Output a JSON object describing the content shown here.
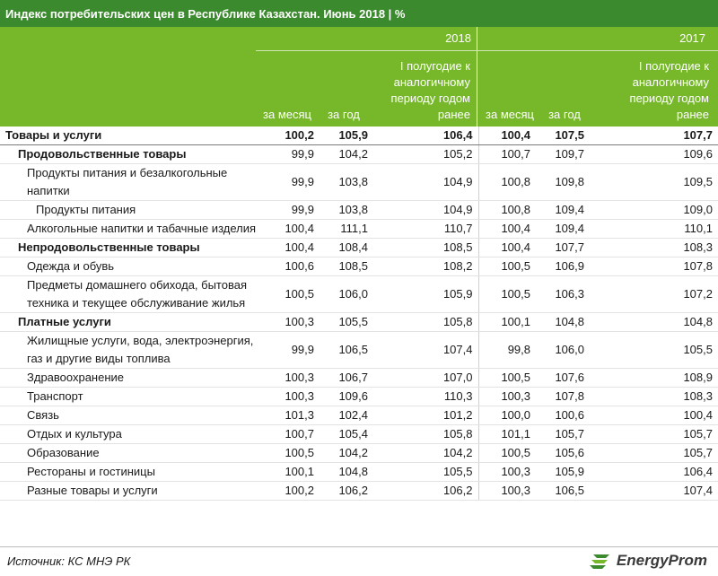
{
  "title": "Индекс потребительских цен в Республике Казахстан. Июнь 2018 | %",
  "header": {
    "year1": "2018",
    "year2": "2017",
    "col_month": "за месяц",
    "col_year": "за год",
    "col_half": "I полугодие к аналогичному периоду годом ранее"
  },
  "rows": [
    {
      "label": "Товары и услуги",
      "v": [
        "100,2",
        "105,9",
        "106,4",
        "100,4",
        "107,5",
        "107,7"
      ],
      "level": 0
    },
    {
      "label": "Продовольственные товары",
      "v": [
        "99,9",
        "104,2",
        "105,2",
        "100,7",
        "109,7",
        "109,6"
      ],
      "level": 1
    },
    {
      "label": "Продукты питания и безалкогольные напитки",
      "v": [
        "99,9",
        "103,8",
        "104,9",
        "100,8",
        "109,8",
        "109,5"
      ],
      "level": 2
    },
    {
      "label": "Продукты питания",
      "v": [
        "99,9",
        "103,8",
        "104,9",
        "100,8",
        "109,4",
        "109,0"
      ],
      "level": 3
    },
    {
      "label": "Алкогольные напитки и табачные изделия",
      "v": [
        "100,4",
        "111,1",
        "110,7",
        "100,4",
        "109,4",
        "110,1"
      ],
      "level": 2
    },
    {
      "label": "Непродовольственные товары",
      "v": [
        "100,4",
        "108,4",
        "108,5",
        "100,4",
        "107,7",
        "108,3"
      ],
      "level": 1
    },
    {
      "label": "Одежда и обувь",
      "v": [
        "100,6",
        "108,5",
        "108,2",
        "100,5",
        "106,9",
        "107,8"
      ],
      "level": 2
    },
    {
      "label": "Предметы домашнего обихода, бытовая техника и текущее обслуживание жилья",
      "v": [
        "100,5",
        "106,0",
        "105,9",
        "100,5",
        "106,3",
        "107,2"
      ],
      "level": 2
    },
    {
      "label": "Платные услуги",
      "v": [
        "100,3",
        "105,5",
        "105,8",
        "100,1",
        "104,8",
        "104,8"
      ],
      "level": 1
    },
    {
      "label": "Жилищные услуги, вода, электроэнергия, газ и другие виды топлива",
      "v": [
        "99,9",
        "106,5",
        "107,4",
        "99,8",
        "106,0",
        "105,5"
      ],
      "level": 2
    },
    {
      "label": "Здравоохранение",
      "v": [
        "100,3",
        "106,7",
        "107,0",
        "100,5",
        "107,6",
        "108,9"
      ],
      "level": 2
    },
    {
      "label": "Транспорт",
      "v": [
        "100,3",
        "109,6",
        "110,3",
        "100,3",
        "107,8",
        "108,3"
      ],
      "level": 2
    },
    {
      "label": "Связь",
      "v": [
        "101,3",
        "102,4",
        "101,2",
        "100,0",
        "100,6",
        "100,4"
      ],
      "level": 2
    },
    {
      "label": "Отдых и культура",
      "v": [
        "100,7",
        "105,4",
        "105,8",
        "101,1",
        "105,7",
        "105,7"
      ],
      "level": 2
    },
    {
      "label": "Образование",
      "v": [
        "100,5",
        "104,2",
        "104,2",
        "100,5",
        "105,6",
        "105,7"
      ],
      "level": 2
    },
    {
      "label": "Рестораны и гостиницы",
      "v": [
        "100,1",
        "104,8",
        "105,5",
        "100,3",
        "105,9",
        "106,4"
      ],
      "level": 2
    },
    {
      "label": "Разные товары и услуги",
      "v": [
        "100,2",
        "106,2",
        "106,2",
        "100,3",
        "106,5",
        "107,4"
      ],
      "level": 2
    }
  ],
  "footer": {
    "source": "Источник: КС МНЭ РК",
    "logo_text": "EnergyProm",
    "logo_icon": "energyprom-logo-icon"
  },
  "colors": {
    "title_bg": "#3c8a2e",
    "header_bg": "#76b82a"
  }
}
